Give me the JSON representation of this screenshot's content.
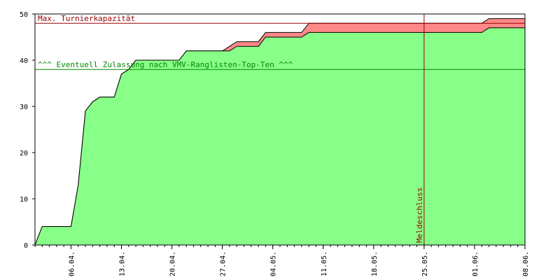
{
  "chart_data": {
    "type": "area",
    "title": "",
    "xlabel": "",
    "ylabel": "",
    "ylim": [
      0,
      50
    ],
    "xlim": [
      "2025-04-01",
      "2025-06-08"
    ],
    "y_ticks": [
      0,
      10,
      20,
      30,
      40,
      50
    ],
    "x_tick_labels": [
      {
        "date": "2025-04-06",
        "label": "06.04."
      },
      {
        "date": "2025-04-13",
        "label": "13.04."
      },
      {
        "date": "2025-04-20",
        "label": "20.04."
      },
      {
        "date": "2025-04-27",
        "label": "27.04."
      },
      {
        "date": "2025-05-04",
        "label": "04.05."
      },
      {
        "date": "2025-05-11",
        "label": "11.05."
      },
      {
        "date": "2025-05-18",
        "label": "18.05."
      },
      {
        "date": "2025-05-25",
        "label": "25.05."
      },
      {
        "date": "2025-06-01",
        "label": "01.06."
      },
      {
        "date": "2025-06-08",
        "label": "08.06."
      }
    ],
    "series": [
      {
        "color": "#88ff88",
        "x": [
          "2025-04-01",
          "2025-04-02",
          "2025-04-03",
          "2025-04-04",
          "2025-04-05",
          "2025-04-06",
          "2025-04-07",
          "2025-04-08",
          "2025-04-09",
          "2025-04-10",
          "2025-04-11",
          "2025-04-12",
          "2025-04-13",
          "2025-04-14",
          "2025-04-15",
          "2025-04-16",
          "2025-04-17",
          "2025-04-18",
          "2025-04-19",
          "2025-04-20",
          "2025-04-21",
          "2025-04-22",
          "2025-04-23",
          "2025-04-24",
          "2025-04-25",
          "2025-04-26",
          "2025-04-27",
          "2025-04-28",
          "2025-04-29",
          "2025-04-30",
          "2025-05-01",
          "2025-05-02",
          "2025-05-03",
          "2025-05-04",
          "2025-05-05",
          "2025-05-06",
          "2025-05-07",
          "2025-05-08",
          "2025-05-09",
          "2025-05-10",
          "2025-05-11",
          "2025-06-02",
          "2025-06-03",
          "2025-06-08"
        ],
        "values": [
          0,
          4,
          4,
          4,
          4,
          4,
          13,
          29,
          31,
          32,
          32,
          32,
          37,
          38,
          40,
          40,
          40,
          40,
          40,
          40,
          40,
          42,
          42,
          42,
          42,
          42,
          42,
          42,
          43,
          43,
          43,
          43,
          45,
          45,
          45,
          45,
          45,
          45,
          46,
          46,
          46,
          46,
          47,
          47
        ]
      },
      {
        "color": "#ff8888",
        "x": [
          "2025-04-01",
          "2025-04-02",
          "2025-04-03",
          "2025-04-04",
          "2025-04-05",
          "2025-04-06",
          "2025-04-07",
          "2025-04-08",
          "2025-04-09",
          "2025-04-10",
          "2025-04-11",
          "2025-04-12",
          "2025-04-13",
          "2025-04-14",
          "2025-04-15",
          "2025-04-16",
          "2025-04-17",
          "2025-04-18",
          "2025-04-19",
          "2025-04-20",
          "2025-04-21",
          "2025-04-22",
          "2025-04-23",
          "2025-04-24",
          "2025-04-25",
          "2025-04-26",
          "2025-04-27",
          "2025-04-28",
          "2025-04-29",
          "2025-04-30",
          "2025-05-01",
          "2025-05-02",
          "2025-05-03",
          "2025-05-04",
          "2025-05-05",
          "2025-05-06",
          "2025-05-07",
          "2025-05-08",
          "2025-05-09",
          "2025-05-10",
          "2025-05-11",
          "2025-06-02",
          "2025-06-03",
          "2025-06-08"
        ],
        "values": [
          0,
          4,
          4,
          4,
          4,
          4,
          13,
          29,
          31,
          32,
          32,
          32,
          37,
          38,
          40,
          40,
          40,
          40,
          40,
          40,
          40,
          42,
          42,
          42,
          42,
          42,
          42,
          43,
          44,
          44,
          44,
          44,
          46,
          46,
          46,
          46,
          46,
          46,
          48,
          48,
          48,
          48,
          49,
          49
        ]
      }
    ],
    "reference_lines": [
      {
        "axis": "y",
        "value": 48,
        "label": "Max. Turnierkapazität",
        "color": "#990000"
      },
      {
        "axis": "y",
        "value": 38,
        "label": "^^^ Eventuell Zulassung nach VMV-Ranglisten-Top-Ten ^^^",
        "color": "#008800"
      },
      {
        "axis": "x",
        "value": "2025-05-25",
        "label": "Meldeschluss",
        "color": "#990000"
      }
    ],
    "grid": false,
    "legend": "none"
  }
}
